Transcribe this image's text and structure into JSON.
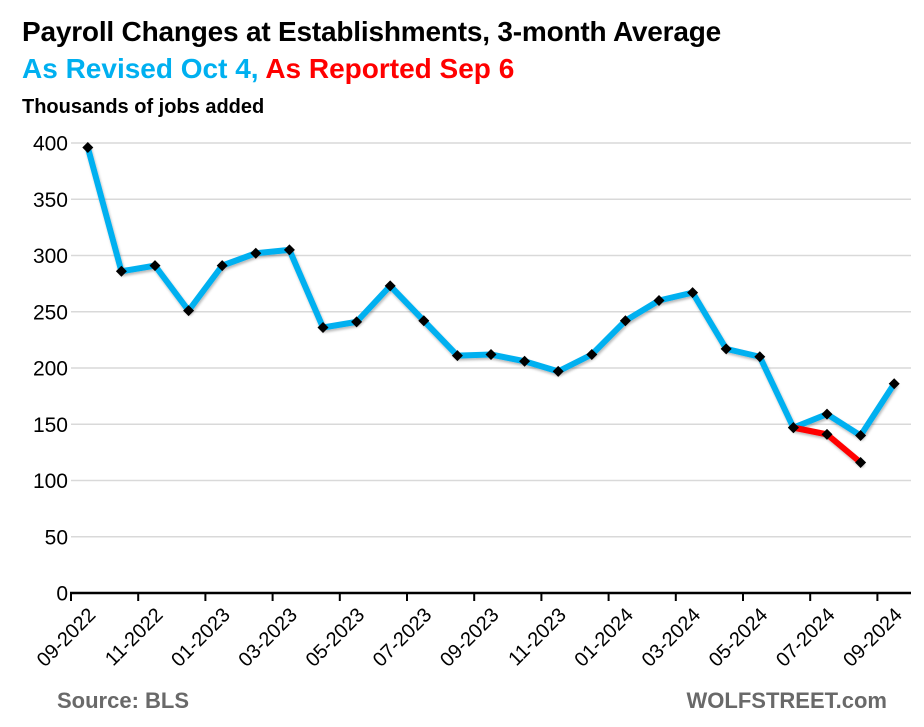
{
  "header": {
    "title": "Payroll Changes at Establishments, 3-month Average",
    "legend_revised": "As Revised Oct 4,",
    "legend_reported": "As Reported Sep 6",
    "units": "Thousands of jobs added"
  },
  "footer": {
    "source": "Source: BLS",
    "brand": "WOLFSTREET.com"
  },
  "colors": {
    "revised": "#00B0F0",
    "reported": "#FF0000",
    "grid": "#D9D9D9",
    "axis": "#000000",
    "marker": "#000000",
    "footer_text": "#696969"
  },
  "chart_data": {
    "type": "line",
    "title": "Payroll Changes at Establishments, 3-month Average",
    "subtitle": "As Revised Oct 4, As Reported Sep 6",
    "ylabel": "Thousands of jobs added",
    "ylim": [
      0,
      400
    ],
    "ytick_step": 50,
    "grid": "horizontal",
    "legend_position": "in-subtitle",
    "x": [
      "09-2022",
      "10-2022",
      "11-2022",
      "12-2022",
      "01-2023",
      "02-2023",
      "03-2023",
      "04-2023",
      "05-2023",
      "06-2023",
      "07-2023",
      "08-2023",
      "09-2023",
      "10-2023",
      "11-2023",
      "12-2023",
      "01-2024",
      "02-2024",
      "03-2024",
      "04-2024",
      "05-2024",
      "06-2024",
      "07-2024",
      "08-2024",
      "09-2024"
    ],
    "xtick_labels": [
      "09-2022",
      "11-2022",
      "01-2023",
      "03-2023",
      "05-2023",
      "07-2023",
      "09-2023",
      "11-2023",
      "01-2024",
      "03-2024",
      "05-2024",
      "07-2024",
      "09-2024"
    ],
    "series": [
      {
        "name": "As Revised Oct 4",
        "color_key": "revised",
        "start_index": 0,
        "values": [
          396,
          286,
          291,
          251,
          291,
          302,
          305,
          236,
          241,
          273,
          242,
          211,
          212,
          206,
          197,
          212,
          242,
          260,
          267,
          217,
          210,
          147,
          159,
          140,
          186
        ]
      },
      {
        "name": "As Reported Sep 6",
        "color_key": "reported",
        "start_index": 21,
        "values": [
          147,
          141,
          116
        ]
      }
    ]
  }
}
